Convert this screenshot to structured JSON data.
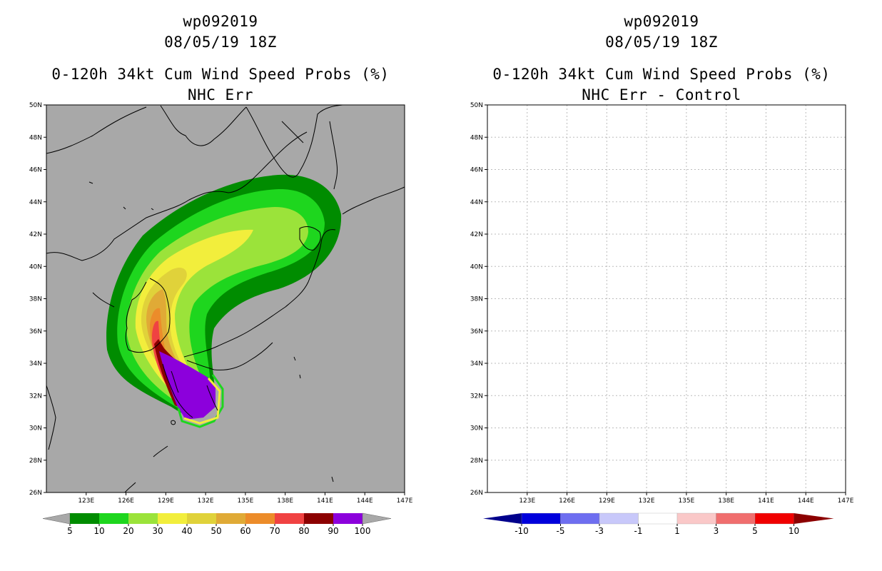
{
  "left_panel": {
    "title_line1": "wp092019",
    "title_line2": "08/05/19 18Z",
    "title_line3": "0-120h 34kt Cum Wind Speed Probs (%)",
    "title_line4": "NHC Err"
  },
  "right_panel": {
    "title_line1": "wp092019",
    "title_line2": "08/05/19 18Z",
    "title_line3": "0-120h 34kt Cum Wind Speed Probs (%)",
    "title_line4": "NHC Err - Control"
  },
  "colors": {
    "background_land_sea": "#a8a8a8",
    "coastline": "#000000",
    "grid": "#bbbbbb"
  },
  "chart_data": [
    {
      "type": "heatmap",
      "panel": "left",
      "title": "0-120h 34kt Cum Wind Speed Probs (%)",
      "subtitle": "NHC Err",
      "storm_id": "wp092019",
      "time": "08/05/19 18Z",
      "xlabel": "",
      "ylabel": "",
      "xlim": [
        120,
        147
      ],
      "ylim": [
        26,
        50
      ],
      "xticks": [
        "123E",
        "126E",
        "129E",
        "132E",
        "135E",
        "138E",
        "141E",
        "144E",
        "147E"
      ],
      "yticks": [
        "26N",
        "28N",
        "30N",
        "32N",
        "34N",
        "36N",
        "38N",
        "40N",
        "42N",
        "44N",
        "46N",
        "48N",
        "50N"
      ],
      "grid": false,
      "colorbar": {
        "levels": [
          "5",
          "10",
          "20",
          "30",
          "40",
          "50",
          "60",
          "70",
          "80",
          "90",
          "100"
        ],
        "colors": [
          "#008c00",
          "#1ed61e",
          "#9be33a",
          "#f2ee3c",
          "#e0d23a",
          "#e0aa36",
          "#ec8c2a",
          "#f04242",
          "#8c0000",
          "#8c00dc"
        ]
      }
    },
    {
      "type": "heatmap",
      "panel": "right",
      "title": "0-120h 34kt Cum Wind Speed Probs (%)",
      "subtitle": "NHC Err - Control",
      "storm_id": "wp092019",
      "time": "08/05/19 18Z",
      "xlabel": "",
      "ylabel": "",
      "xlim": [
        120,
        147
      ],
      "ylim": [
        26,
        50
      ],
      "xticks": [
        "123E",
        "126E",
        "129E",
        "132E",
        "135E",
        "138E",
        "141E",
        "144E",
        "147E"
      ],
      "yticks": [
        "26N",
        "28N",
        "30N",
        "32N",
        "34N",
        "36N",
        "38N",
        "40N",
        "42N",
        "44N",
        "46N",
        "48N",
        "50N"
      ],
      "grid": true,
      "colorbar": {
        "levels": [
          "-10",
          "-5",
          "-3",
          "-1",
          "1",
          "3",
          "5",
          "10"
        ],
        "colors": [
          "#0000dc",
          "#6e6ef0",
          "#c8c8fa",
          "#ffffff",
          "#fac8c8",
          "#f06e6e",
          "#f00000"
        ],
        "low_arrow_color": "#00008c",
        "high_arrow_color": "#8c0000"
      }
    }
  ]
}
